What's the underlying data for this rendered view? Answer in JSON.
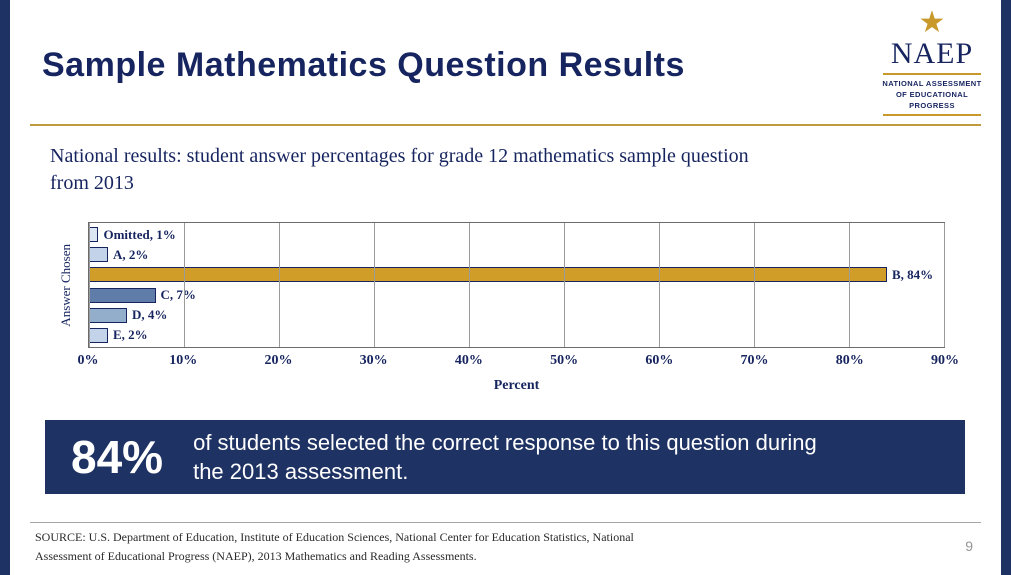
{
  "slide": {
    "title": "Sample Mathematics Question Results",
    "page_number": "9"
  },
  "logo": {
    "star": "★",
    "name": "NAEP",
    "tagline_lines": [
      "NATIONAL ASSESSMENT",
      "OF EDUCATIONAL",
      "PROGRESS"
    ]
  },
  "subtitle": "National results: student answer percentages for grade 12 mathematics sample question from 2013",
  "chart_data": {
    "type": "bar",
    "orientation": "horizontal",
    "categories": [
      "Omitted",
      "A",
      "B",
      "C",
      "D",
      "E"
    ],
    "values": [
      1,
      2,
      84,
      7,
      4,
      2
    ],
    "labels": [
      "Omitted, 1%",
      "A, 2%",
      "B, 84%",
      "C, 7%",
      "D, 4%",
      "E, 2%"
    ],
    "colors": [
      "#dce6f2",
      "#c3d4ea",
      "#d09d28",
      "#5f7da8",
      "#93aecb",
      "#c3d4ea"
    ],
    "title": "",
    "xlabel": "Percent",
    "ylabel": "Answer Chosen",
    "xlim": [
      0,
      90
    ],
    "x_ticks": [
      "0%",
      "10%",
      "20%",
      "30%",
      "40%",
      "50%",
      "60%",
      "70%",
      "80%",
      "90%"
    ],
    "grid": true,
    "legend": "none"
  },
  "banner": {
    "stat": "84%",
    "text": "of students selected the correct response to this question during the 2013 assessment."
  },
  "source_lines": [
    "SOURCE: U.S. Department of Education, Institute of Education Sciences, National Center for Education Statistics, National",
    "Assessment of Educational Progress (NAEP), 2013 Mathematics and Reading Assessments."
  ],
  "colors": {
    "navy": "#16245f",
    "banner_navy": "#1e3263",
    "gold": "#c09a3e",
    "bar_gold": "#d09d28"
  }
}
